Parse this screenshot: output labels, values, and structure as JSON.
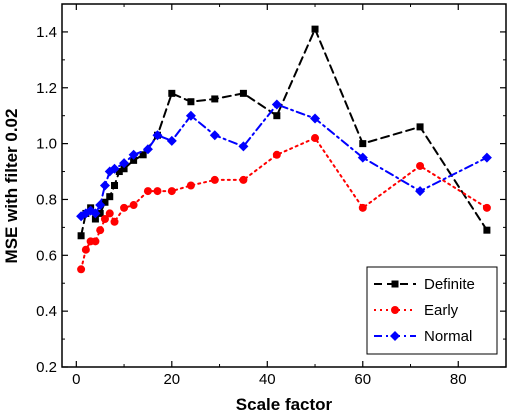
{
  "chart_data": {
    "type": "line",
    "xlabel": "Scale factor",
    "ylabel": "MSE with filter 0.02",
    "xlim": [
      -3,
      90
    ],
    "ylim": [
      0.2,
      1.5
    ],
    "xticks": [
      0,
      20,
      40,
      60,
      80
    ],
    "yticks": [
      0.2,
      0.4,
      0.6,
      0.8,
      1.0,
      1.2,
      1.4
    ],
    "xtick_labels": [
      "0",
      "20",
      "40",
      "60",
      "80"
    ],
    "ytick_labels": [
      "0.2",
      "0.4",
      "0.6",
      "0.8",
      "1.0",
      "1.2",
      "1.4"
    ],
    "grid": false,
    "legend_position": "bottom-right",
    "series": [
      {
        "name": "Definite",
        "color": "#000000",
        "marker": "square",
        "line_style": "dashed",
        "x": [
          1,
          2,
          3,
          4,
          5,
          6,
          7,
          8,
          9,
          10,
          12,
          14,
          17,
          20,
          24,
          29,
          35,
          42,
          50,
          60,
          72,
          86
        ],
        "y": [
          0.67,
          0.75,
          0.77,
          0.73,
          0.75,
          0.79,
          0.81,
          0.85,
          0.9,
          0.91,
          0.94,
          0.96,
          1.03,
          1.18,
          1.15,
          1.16,
          1.18,
          1.1,
          1.41,
          1.0,
          1.06,
          0.69
        ]
      },
      {
        "name": "Early",
        "color": "#ff0000",
        "marker": "circle",
        "line_style": "dotted",
        "x": [
          1,
          2,
          3,
          4,
          5,
          6,
          7,
          8,
          10,
          12,
          15,
          17,
          20,
          24,
          29,
          35,
          42,
          50,
          60,
          72,
          86
        ],
        "y": [
          0.55,
          0.62,
          0.65,
          0.65,
          0.69,
          0.73,
          0.75,
          0.72,
          0.77,
          0.78,
          0.83,
          0.83,
          0.83,
          0.85,
          0.87,
          0.87,
          0.96,
          1.02,
          0.77,
          0.92,
          0.77
        ]
      },
      {
        "name": "Normal",
        "color": "#0000ff",
        "marker": "diamond",
        "line_style": "dashdot",
        "x": [
          1,
          2,
          3,
          4,
          5,
          6,
          7,
          8,
          10,
          12,
          15,
          17,
          20,
          24,
          29,
          35,
          42,
          50,
          60,
          72,
          86
        ],
        "y": [
          0.74,
          0.75,
          0.76,
          0.75,
          0.78,
          0.85,
          0.9,
          0.91,
          0.93,
          0.96,
          0.98,
          1.03,
          1.01,
          1.1,
          1.03,
          0.99,
          1.14,
          1.09,
          0.95,
          0.83,
          0.95
        ]
      }
    ]
  }
}
